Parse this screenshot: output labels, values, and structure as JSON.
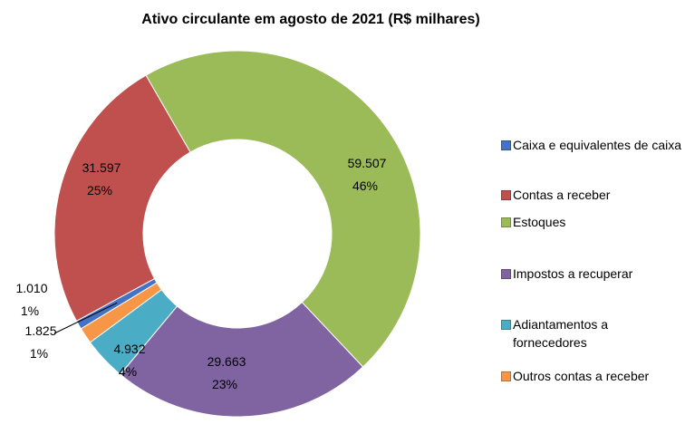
{
  "chart_data": {
    "type": "doughnut",
    "title": "Ativo circulante em agosto de 2021 (R$ milhares)",
    "categories": [
      "Caixa e equivalentes de caixa",
      "Contas a receber",
      "Estoques",
      "Impostos a recuperar",
      "Adiantamentos a fornecedores",
      "Outros contas a receber"
    ],
    "values": [
      1010,
      31597,
      59507,
      29663,
      4932,
      1825
    ],
    "value_labels": [
      "1.010",
      "31.597",
      "59.507",
      "29.663",
      "4.932",
      "1.825"
    ],
    "percent_labels": [
      "1%",
      "25%",
      "46%",
      "23%",
      "4%",
      "1%"
    ],
    "colors": [
      "#4472c4",
      "#c0504d",
      "#9bbb59",
      "#8064a2",
      "#4bacc6",
      "#f79646"
    ],
    "legend": "right"
  }
}
